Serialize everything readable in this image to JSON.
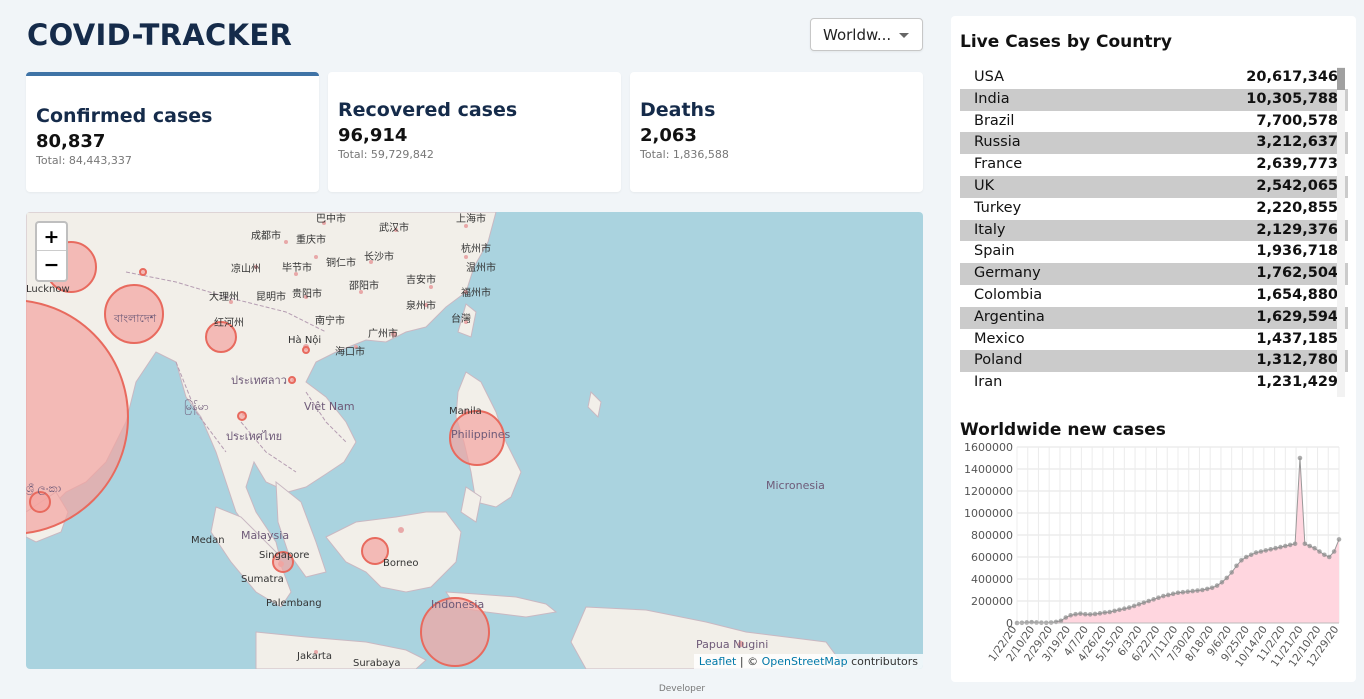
{
  "app": {
    "title": "COVID-TRACKER"
  },
  "region_select": {
    "value": "Worldw..."
  },
  "cards": [
    {
      "title": "Confirmed cases",
      "value": "80,837",
      "total": "Total: 84,443,337"
    },
    {
      "title": "Recovered cases",
      "value": "96,914",
      "total": "Total: 59,729,842"
    },
    {
      "title": "Deaths",
      "value": "2,063",
      "total": "Total: 1,836,588"
    }
  ],
  "map": {
    "zoom_in": "+",
    "zoom_out": "−",
    "attribution": {
      "leaflet": "Leaflet",
      "sep": " | © ",
      "osm": "OpenStreetMap",
      "contrib": " contributors"
    },
    "labels": [
      "巴中市",
      "武汉市",
      "上海市",
      "成都市",
      "重庆市",
      "杭州市",
      "凉山州",
      "毕节市",
      "铜仁市",
      "长沙市",
      "温州市",
      "Lucknow",
      "邵阳市",
      "吉安市",
      "大理州",
      "昆明市",
      "贵阳市",
      "泉州市",
      "福州市",
      "红河州",
      "南宁市",
      "广州市",
      "台灣",
      "Hà Nội",
      "海口市",
      "ประเทศลาว",
      "Việt Nam",
      "မြန်မာ",
      "ประเทศไทย",
      "Manila",
      "Philippines",
      "ශ්‍රී ලංකා",
      "Micronesia",
      "Medan",
      "Malaysia",
      "Singapore",
      "Borneo",
      "Sumatra",
      "Palembang",
      "Indonesia",
      "Papua Nugini",
      "Jakarta",
      "Surabaya",
      "বাংলাদেশ"
    ],
    "colors": {
      "sea": "#aad3df",
      "land": "#f2efe9",
      "circle_fill": "#f4a4a0",
      "circle_stroke": "#e86a5e"
    }
  },
  "live_cases": {
    "title": "Live Cases by Country",
    "rows": [
      {
        "country": "USA",
        "cases": "20,617,346"
      },
      {
        "country": "India",
        "cases": "10,305,788"
      },
      {
        "country": "Brazil",
        "cases": "7,700,578"
      },
      {
        "country": "Russia",
        "cases": "3,212,637"
      },
      {
        "country": "France",
        "cases": "2,639,773"
      },
      {
        "country": "UK",
        "cases": "2,542,065"
      },
      {
        "country": "Turkey",
        "cases": "2,220,855"
      },
      {
        "country": "Italy",
        "cases": "2,129,376"
      },
      {
        "country": "Spain",
        "cases": "1,936,718"
      },
      {
        "country": "Germany",
        "cases": "1,762,504"
      },
      {
        "country": "Colombia",
        "cases": "1,654,880"
      },
      {
        "country": "Argentina",
        "cases": "1,629,594"
      },
      {
        "country": "Mexico",
        "cases": "1,437,185"
      },
      {
        "country": "Poland",
        "cases": "1,312,780"
      },
      {
        "country": "Iran",
        "cases": "1,231,429"
      }
    ]
  },
  "chart_data": {
    "type": "area",
    "title": "Worldwide new cases",
    "xlabel": "",
    "ylabel": "",
    "ylim": [
      0,
      1600000
    ],
    "yticks": [
      0,
      200000,
      400000,
      600000,
      800000,
      1000000,
      1200000,
      1400000,
      1600000
    ],
    "xtick_labels": [
      "1/22/20",
      "2/10/20",
      "2/29/20",
      "3/19/20",
      "4/7/20",
      "4/26/20",
      "5/15/20",
      "6/3/20",
      "6/22/20",
      "7/11/20",
      "7/30/20",
      "8/18/20",
      "9/6/20",
      "9/25/20",
      "10/14/20",
      "11/2/20",
      "11/21/20",
      "12/10/20",
      "12/29/20"
    ],
    "series": [
      {
        "values": [
          0,
          2000,
          5000,
          8000,
          5000,
          3000,
          2000,
          4000,
          10000,
          20000,
          50000,
          70000,
          80000,
          85000,
          80000,
          78000,
          82000,
          88000,
          95000,
          100000,
          110000,
          120000,
          130000,
          140000,
          155000,
          170000,
          185000,
          200000,
          215000,
          230000,
          245000,
          255000,
          265000,
          275000,
          280000,
          285000,
          290000,
          295000,
          300000,
          310000,
          320000,
          340000,
          370000,
          410000,
          460000,
          520000,
          570000,
          600000,
          620000,
          640000,
          650000,
          660000,
          670000,
          680000,
          690000,
          700000,
          710000,
          720000,
          1500000,
          720000,
          700000,
          680000,
          650000,
          620000,
          600000,
          650000,
          760000
        ]
      }
    ],
    "grid": true,
    "colors": {
      "fill": "#ffd6df",
      "line": "#999999",
      "marker": "#8a8a8a"
    }
  },
  "footer": {
    "text": "Developer"
  }
}
